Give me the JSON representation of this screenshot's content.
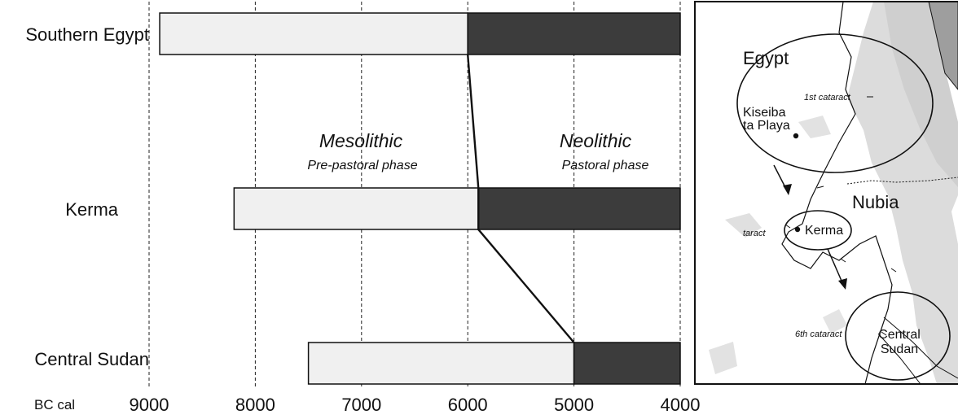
{
  "chart_data": {
    "type": "bar",
    "subtype": "horizontal-floating-timeline",
    "x_unit": "BC cal",
    "x_ticks": [
      9000,
      8000,
      7000,
      6000,
      5000,
      4000
    ],
    "xlim": [
      9000,
      4000
    ],
    "x_reversed": true,
    "grid": "vertical dashed",
    "categories": [
      "Southern Egypt",
      "Kerma",
      "Central Sudan"
    ],
    "series": [
      {
        "name": "Mesolithic",
        "values": [
          [
            8900,
            6000
          ],
          [
            8200,
            5900
          ],
          [
            7500,
            5000
          ]
        ]
      },
      {
        "name": "Neolithic",
        "values": [
          [
            6000,
            4000
          ],
          [
            5900,
            4000
          ],
          [
            5000,
            4000
          ]
        ]
      }
    ],
    "transition_line": [
      6000,
      5900,
      5000
    ],
    "phases": [
      {
        "title": "Mesolithic",
        "subtitle": "Pre-pastoral phase"
      },
      {
        "title": "Neolithic",
        "subtitle": "Pastoral phase"
      }
    ],
    "colors": {
      "mesolithic": "#f0f0f0",
      "neolithic": "#3c3c3c",
      "outline": "#111111"
    }
  },
  "map": {
    "region_labels": [
      "Egypt",
      "Nubia"
    ],
    "site_labels": [
      "Kerma",
      "Central",
      "Sudan"
    ],
    "partial_site_labels": [
      "Kiseiba",
      "ta Playa"
    ],
    "cataract_labels": [
      "1st cataract",
      "taract",
      "6th cataract"
    ]
  }
}
